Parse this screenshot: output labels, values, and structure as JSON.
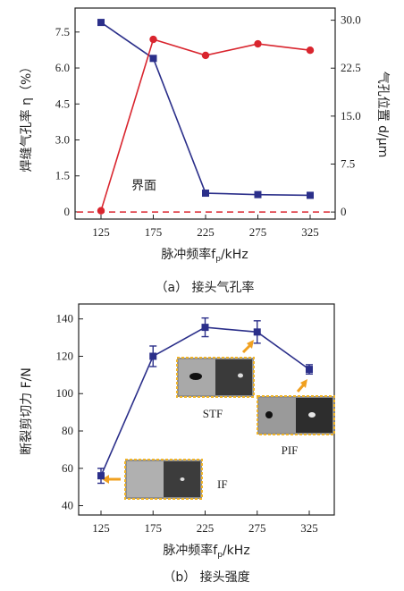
{
  "colors": {
    "blue": "#2b2f8a",
    "red": "#d9252e",
    "inset_border": "#f0b429",
    "arrow": "#f0a020"
  },
  "chart_data": [
    {
      "type": "line",
      "x": [
        125,
        175,
        225,
        275,
        325
      ],
      "xlabel": "脉冲频率f",
      "xlabel_sub": "p",
      "xlabel_unit": "/kHz",
      "caption": "（a）  接头气孔率",
      "xticks": [
        "125",
        "175",
        "225",
        "275",
        "325"
      ],
      "ylabel_left": "焊缝气孔率 η（%）",
      "ylabel_right": "气孔位置 d/μm",
      "yticks_left": [
        "0",
        "1.5",
        "3.0",
        "4.5",
        "6.0",
        "7.5"
      ],
      "yticks_right": [
        "0",
        "7.5",
        "15.0",
        "22.5",
        "30.0"
      ],
      "ylim_left": [
        -0.3,
        8.5
      ],
      "ylim_right": [
        -1.1,
        31.9
      ],
      "series": [
        {
          "axis": "left",
          "color": "#2b2f8a",
          "marker": "square",
          "values": [
            7.9,
            6.4,
            0.78,
            0.72,
            0.69
          ]
        },
        {
          "axis": "right",
          "color": "#d9252e",
          "marker": "circle",
          "values": [
            0.2,
            27.0,
            24.5,
            26.3,
            25.3
          ]
        }
      ],
      "reference_line": {
        "axis": "right",
        "value": 0,
        "style": "dashed",
        "color": "#d9252e"
      },
      "annotation": "界面"
    },
    {
      "type": "line",
      "x": [
        125,
        175,
        225,
        275,
        325
      ],
      "xlabel": "脉冲频率f",
      "xlabel_sub": "p",
      "xlabel_unit": "/kHz",
      "caption": "（b）  接头强度",
      "xticks": [
        "125",
        "175",
        "225",
        "275",
        "325"
      ],
      "ylabel": "断裂剪切力 F/N",
      "yticks": [
        "40",
        "60",
        "80",
        "100",
        "120",
        "140"
      ],
      "ylim": [
        35,
        148
      ],
      "series": [
        {
          "color": "#2b2f8a",
          "marker": "square",
          "values": [
            56,
            120,
            135.5,
            133,
            113
          ],
          "errors": [
            4,
            5.5,
            5,
            6,
            2.5
          ]
        }
      ],
      "insets": [
        {
          "label": "IF"
        },
        {
          "label": "STF"
        },
        {
          "label": "PIF"
        }
      ]
    }
  ]
}
